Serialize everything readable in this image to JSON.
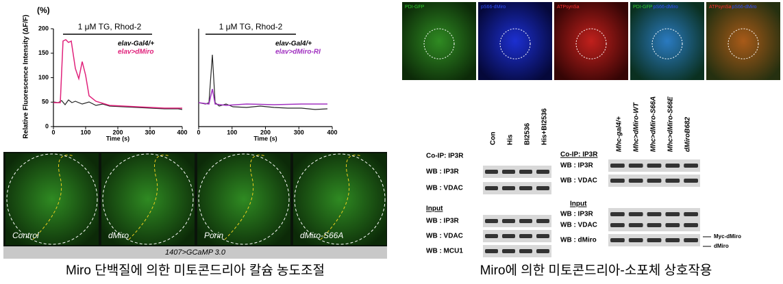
{
  "left": {
    "plot1": {
      "y_unit": "(%)",
      "y_label": "Relative Fluorescence Intensity (ΔF/F)",
      "treatment": "1 μM TG, Rhod-2",
      "legend": [
        "elav-Gal4/+",
        "elav>dMiro"
      ],
      "x_label": "Time  (s)",
      "xticks": [
        "0",
        "100",
        "200",
        "300",
        "400"
      ],
      "yticks": [
        "0",
        "50",
        "100",
        "150",
        "200"
      ]
    },
    "plot2": {
      "treatment": "1 μM TG, Rhod-2",
      "legend": [
        "elav-Gal4/+",
        "elav>dMiro-RI"
      ],
      "x_label": "Time  (s)",
      "xticks": [
        "0",
        "100",
        "200",
        "300",
        "400"
      ]
    },
    "images": {
      "labels": [
        "Control",
        "dMiro",
        "Porin",
        "dMiro-S66A"
      ],
      "footer": "1407>GCaMP 3.0"
    },
    "caption": "Miro 단백질에 의한 미토콘드리아 칼슘 농도조절"
  },
  "right": {
    "confocal_labels": [
      [
        "PDI-GFP"
      ],
      [
        "pS66-dMiro"
      ],
      [
        "ATPsynSa"
      ],
      [
        "PDI-GFP",
        "pS66-dMiro"
      ],
      [
        "ATPsynSa",
        "pS66-dMiro"
      ]
    ],
    "blot1": {
      "title": "Co-IP: IP3R",
      "lanes": [
        "Con",
        "His",
        "BI2536",
        "His+BI2536"
      ],
      "rows": [
        "WB : IP3R",
        "WB : VDAC"
      ],
      "input_title": "Input",
      "input_rows": [
        "WB : IP3R",
        "WB : VDAC",
        "WB : MCU1"
      ]
    },
    "blot2": {
      "title": "Co-IP: IP3R",
      "lanes": [
        "Mhc-gal4/+",
        "Mhc>dMiro-WT",
        "Mhc>dMiro-S66A",
        "Mhc>dMiro-S66E",
        "dMiroB682"
      ],
      "rows": [
        "WB : IP3R",
        "WB : VDAC"
      ],
      "input_title": "Input",
      "input_rows": [
        "WB : IP3R",
        "WB : VDAC",
        "WB : dMiro"
      ],
      "band_labels": [
        "Myc-dMiro",
        "dMiro"
      ]
    },
    "caption": "Miro에 의한 미토콘드리아-소포체 상호작용"
  }
}
